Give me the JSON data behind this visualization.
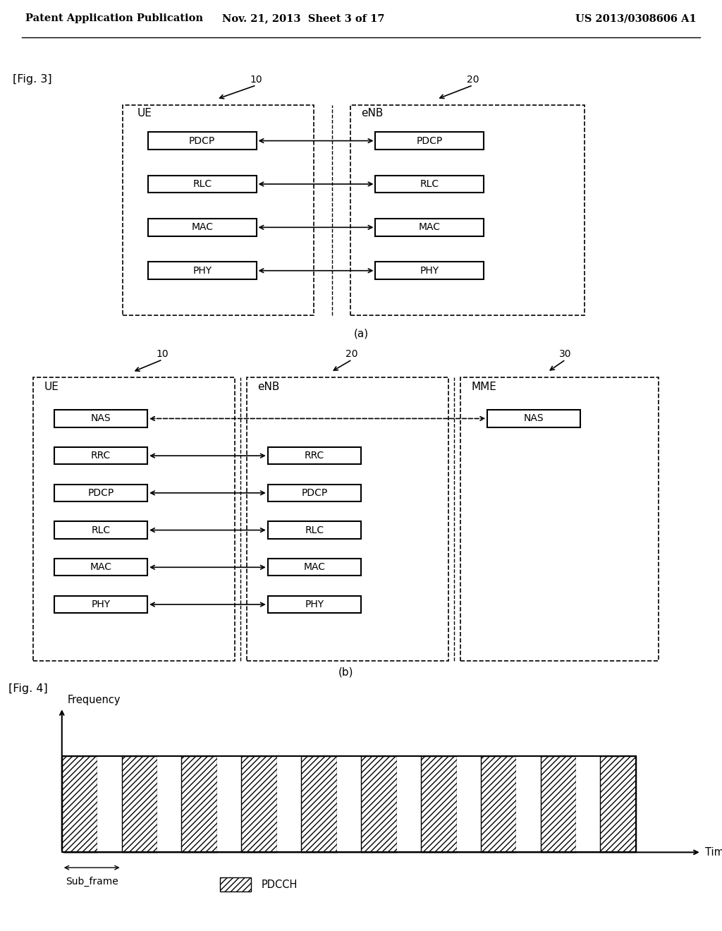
{
  "header_left": "Patent Application Publication",
  "header_mid": "Nov. 21, 2013  Sheet 3 of 17",
  "header_right": "US 2013/0308606 A1",
  "fig3_label": "[Fig. 3]",
  "fig4_label": "[Fig. 4]",
  "fig3a_caption": "(a)",
  "fig3b_caption": "(b)",
  "fig3a": {
    "UE_label": "UE",
    "eNB_label": "eNB",
    "UE_num": "10",
    "eNB_num": "20",
    "layers": [
      "PDCP",
      "RLC",
      "MAC",
      "PHY"
    ]
  },
  "fig3b": {
    "UE_label": "UE",
    "eNB_label": "eNB",
    "MME_label": "MME",
    "UE_num": "10",
    "eNB_num": "20",
    "MME_num": "30",
    "UE_layers": [
      "NAS",
      "RRC",
      "PDCP",
      "RLC",
      "MAC",
      "PHY"
    ],
    "eNB_layers": [
      "RRC",
      "PDCP",
      "RLC",
      "MAC",
      "PHY"
    ],
    "MME_layers": [
      "NAS"
    ]
  },
  "fig4": {
    "ylabel": "Frequency",
    "xlabel": "Time",
    "subfr_label": "Sub_frame",
    "legend_label": "PDCCH",
    "num_blocks": 10,
    "hatch": "////"
  },
  "bg_color": "#ffffff"
}
